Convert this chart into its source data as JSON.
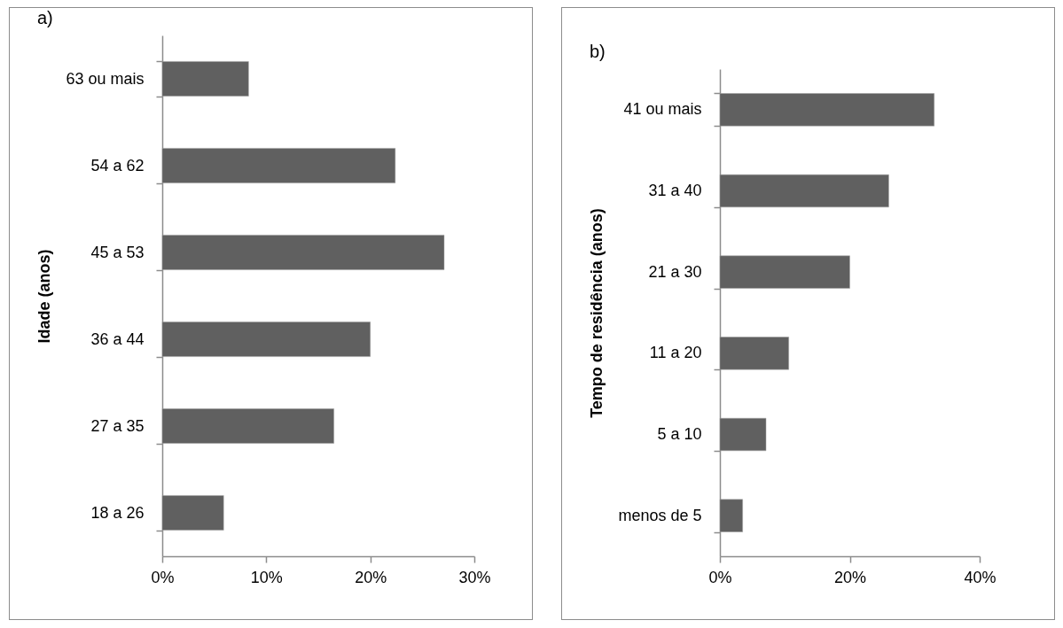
{
  "chart_data": [
    {
      "type": "bar",
      "orientation": "horizontal",
      "title": "a)",
      "ylabel": "Idade (anos)",
      "categories": [
        "63 ou mais",
        "54 a 62",
        "45 a 53",
        "36 a 44",
        "27 a 35",
        "18 a 26"
      ],
      "values": [
        8.3,
        22.4,
        27.1,
        20.0,
        16.5,
        5.9
      ],
      "color": "#606060",
      "xlim": [
        0,
        30
      ],
      "xticks": [
        {
          "value": 0,
          "label": "0%"
        },
        {
          "value": 10,
          "label": "10%"
        },
        {
          "value": 20,
          "label": "20%"
        },
        {
          "value": 30,
          "label": "30%"
        }
      ]
    },
    {
      "type": "bar",
      "orientation": "horizontal",
      "title": "b)",
      "ylabel": "Tempo de residência (anos)",
      "categories": [
        "41 ou mais",
        "31 a 40",
        "21 a 30",
        "11 a 20",
        "5 a 10",
        "menos de 5"
      ],
      "values": [
        33.0,
        26.0,
        20.0,
        10.6,
        7.1,
        3.5
      ],
      "color": "#606060",
      "xlim": [
        0,
        40
      ],
      "xticks": [
        {
          "value": 0,
          "label": "0%"
        },
        {
          "value": 20,
          "label": "20%"
        },
        {
          "value": 40,
          "label": "40%"
        }
      ]
    }
  ]
}
